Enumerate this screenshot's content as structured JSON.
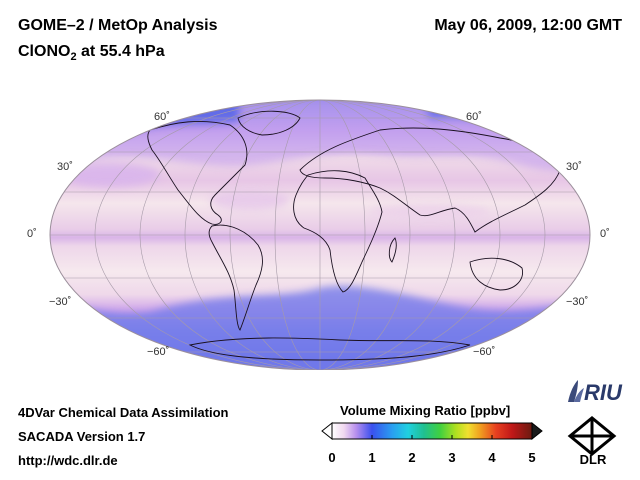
{
  "header": {
    "title_line1": "GOME–2 / MetOp Analysis",
    "title_line2_species": "ClONO",
    "title_line2_subscript": "2",
    "title_line2_level": " at 55.4 hPa",
    "datetime": "May 06, 2009, 12:00 GMT"
  },
  "map": {
    "projection": "Mollweide",
    "lat_labels": {
      "n60": "60˚",
      "n30": "30˚",
      "eq": "0˚",
      "s30": "−30˚",
      "s60": "−60˚"
    }
  },
  "footer": {
    "line1": "4DVar Chemical Data Assimilation",
    "line2": "SACADA Version 1.7",
    "line3": "http://wdc.dlr.de"
  },
  "colorbar": {
    "title": "Volume Mixing Ratio [ppbv]",
    "ticks": [
      "0",
      "1",
      "2",
      "3",
      "4",
      "5"
    ],
    "min": 0,
    "max": 5
  },
  "logos": {
    "riu": "RIU",
    "dlr": "DLR"
  },
  "colors": {
    "background_field": "#f4e6ec",
    "high_band": "#cfb0f0",
    "polar": "#3f55e8"
  }
}
